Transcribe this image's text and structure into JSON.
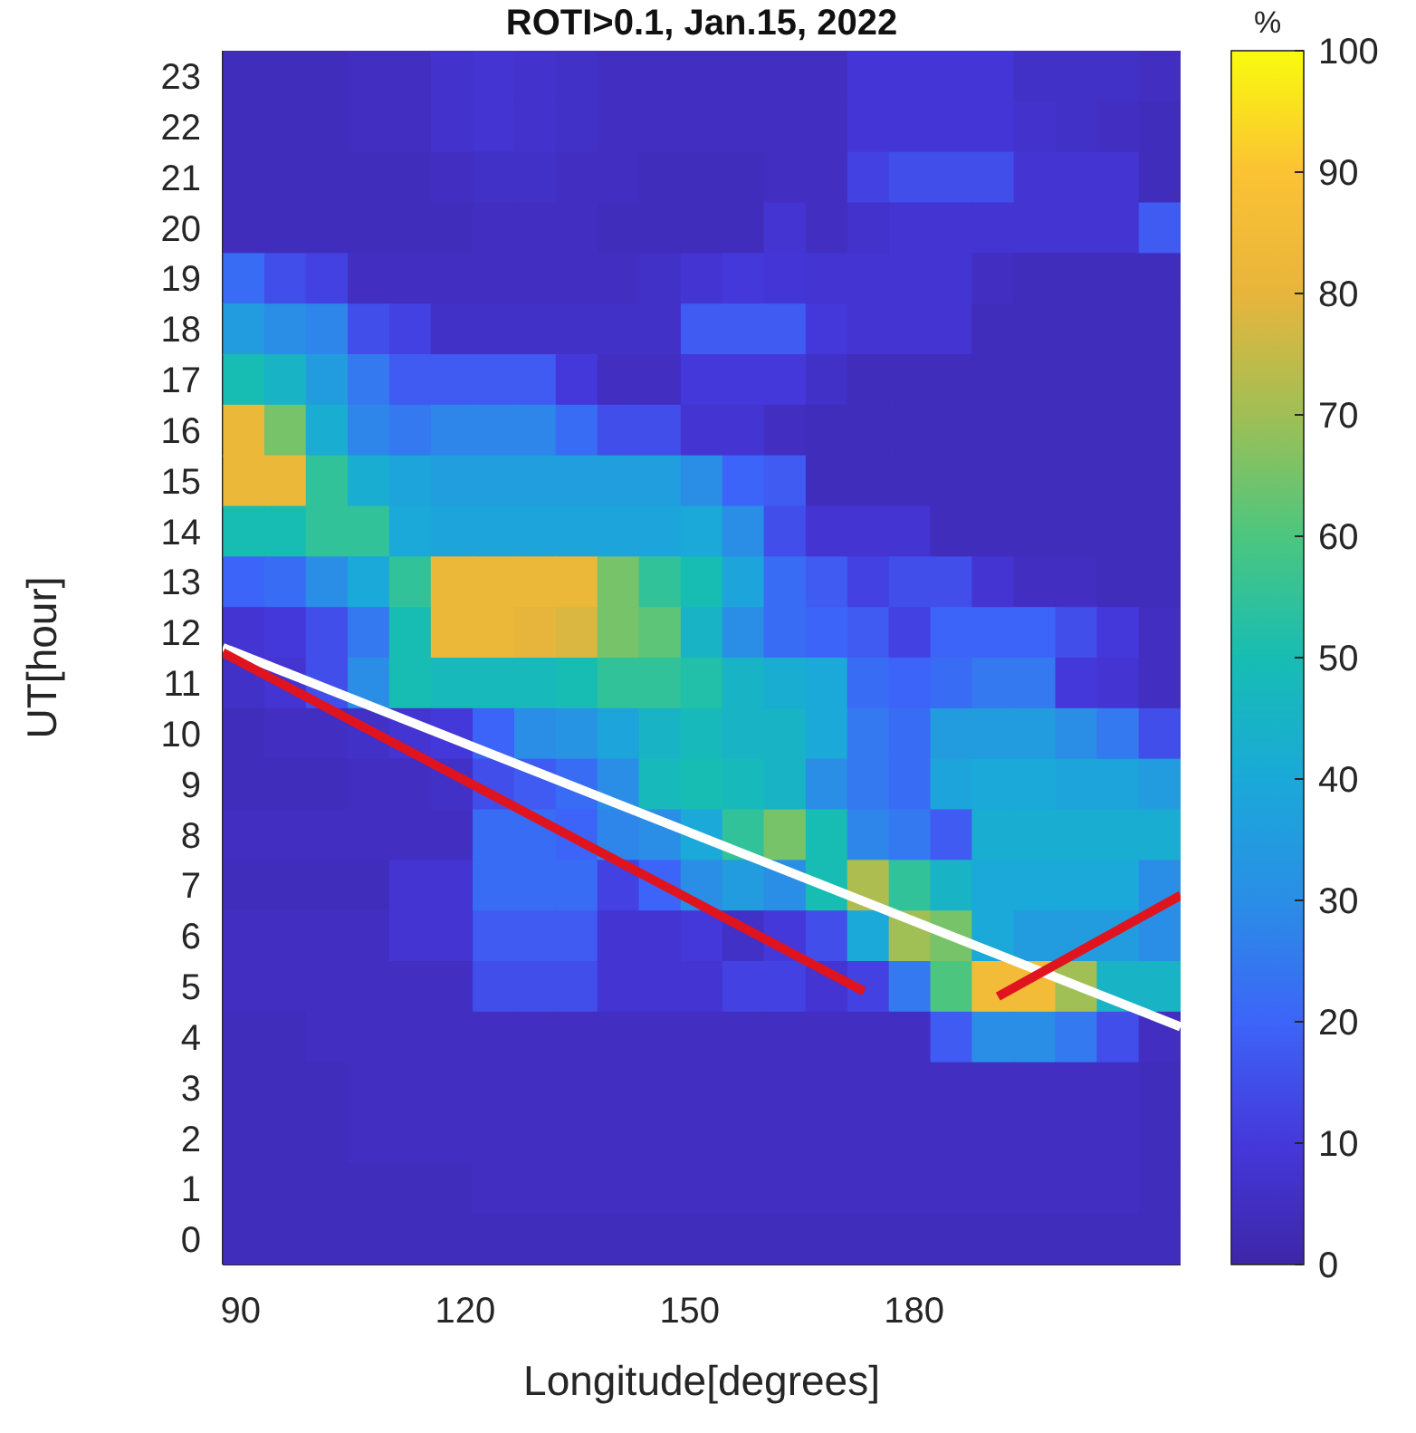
{
  "chart_data": {
    "type": "heatmap",
    "title": "ROTI>0.1, Jan.15, 2022",
    "xlabel": "Longitude[degrees]",
    "ylabel": "UT[hour]",
    "clabel": "%",
    "x": [
      90.4,
      95.9,
      101.5,
      107.1,
      112.6,
      118.2,
      123.8,
      129.3,
      134.9,
      140.4,
      146.0,
      151.6,
      157.1,
      162.7,
      168.3,
      173.8,
      179.4,
      184.9,
      190.5,
      196.1,
      201.6,
      207.2,
      212.8
    ],
    "xlim": [
      87.6,
      215.6
    ],
    "xticks": [
      90,
      120,
      150,
      180
    ],
    "ylim": [
      -0.5,
      23.5
    ],
    "yticks": [
      0,
      1,
      2,
      3,
      4,
      5,
      6,
      7,
      8,
      9,
      10,
      11,
      12,
      13,
      14,
      15,
      16,
      17,
      18,
      19,
      20,
      21,
      22,
      23
    ],
    "clim": [
      0,
      100
    ],
    "cticks": [
      0,
      10,
      20,
      30,
      40,
      50,
      60,
      70,
      80,
      90,
      100
    ],
    "cells": [
      [
        4,
        4,
        4,
        5,
        5,
        7,
        8,
        7,
        6,
        5,
        5,
        5,
        5,
        5,
        5,
        9,
        9,
        9,
        9,
        6,
        6,
        6,
        5
      ],
      [
        4,
        4,
        4,
        5,
        5,
        7,
        8,
        7,
        6,
        5,
        5,
        5,
        5,
        5,
        5,
        9,
        9,
        9,
        9,
        7,
        6,
        5,
        4
      ],
      [
        4,
        4,
        4,
        4,
        4,
        5,
        6,
        6,
        5,
        5,
        4,
        4,
        4,
        5,
        5,
        12,
        15,
        15,
        15,
        8,
        8,
        8,
        4
      ],
      [
        4,
        4,
        4,
        4,
        4,
        4,
        5,
        5,
        5,
        4,
        4,
        4,
        4,
        8,
        5,
        7,
        8,
        8,
        8,
        8,
        8,
        8,
        18
      ],
      [
        22,
        15,
        12,
        5,
        5,
        5,
        5,
        5,
        5,
        5,
        6,
        8,
        10,
        9,
        8,
        8,
        8,
        8,
        5,
        4,
        4,
        4,
        4
      ],
      [
        35,
        30,
        28,
        15,
        12,
        6,
        6,
        6,
        6,
        6,
        6,
        18,
        18,
        18,
        10,
        8,
        8,
        8,
        4,
        4,
        4,
        4,
        4
      ],
      [
        50,
        45,
        35,
        25,
        18,
        18,
        18,
        18,
        10,
        5,
        5,
        10,
        10,
        10,
        6,
        4,
        4,
        4,
        4,
        4,
        4,
        4,
        4
      ],
      [
        82,
        65,
        42,
        28,
        25,
        28,
        28,
        28,
        22,
        15,
        15,
        8,
        8,
        5,
        4,
        4,
        4,
        4,
        4,
        4,
        4,
        4,
        4
      ],
      [
        82,
        82,
        55,
        42,
        38,
        36,
        36,
        36,
        36,
        36,
        36,
        30,
        20,
        18,
        4,
        4,
        4,
        4,
        4,
        4,
        4,
        4,
        4
      ],
      [
        50,
        50,
        55,
        55,
        40,
        38,
        38,
        38,
        38,
        38,
        38,
        40,
        30,
        15,
        8,
        8,
        8,
        4,
        4,
        4,
        4,
        4,
        4
      ],
      [
        20,
        22,
        30,
        40,
        55,
        82,
        82,
        82,
        82,
        65,
        55,
        50,
        38,
        22,
        18,
        12,
        15,
        15,
        8,
        5,
        5,
        4,
        4
      ],
      [
        8,
        10,
        15,
        25,
        50,
        82,
        82,
        80,
        78,
        65,
        62,
        45,
        30,
        22,
        20,
        18,
        12,
        20,
        20,
        20,
        15,
        10,
        5
      ],
      [
        6,
        8,
        15,
        30,
        50,
        48,
        48,
        48,
        50,
        55,
        55,
        52,
        45,
        42,
        40,
        22,
        20,
        22,
        25,
        25,
        10,
        8,
        5
      ],
      [
        4,
        5,
        5,
        6,
        8,
        10,
        20,
        30,
        32,
        38,
        45,
        48,
        45,
        45,
        40,
        25,
        22,
        35,
        35,
        35,
        30,
        25,
        15
      ],
      [
        4,
        4,
        4,
        5,
        5,
        6,
        15,
        18,
        22,
        30,
        48,
        50,
        48,
        45,
        30,
        25,
        22,
        38,
        40,
        40,
        38,
        38,
        35
      ],
      [
        5,
        5,
        5,
        5,
        5,
        5,
        22,
        22,
        20,
        28,
        30,
        40,
        55,
        65,
        50,
        28,
        25,
        18,
        42,
        42,
        42,
        42,
        42
      ],
      [
        4,
        4,
        4,
        4,
        8,
        8,
        22,
        22,
        22,
        12,
        20,
        30,
        35,
        30,
        50,
        72,
        55,
        45,
        40,
        40,
        40,
        40,
        30
      ],
      [
        5,
        5,
        5,
        5,
        8,
        8,
        18,
        18,
        18,
        8,
        8,
        10,
        6,
        10,
        15,
        40,
        70,
        65,
        40,
        35,
        35,
        35,
        30
      ],
      [
        5,
        5,
        5,
        5,
        5,
        5,
        15,
        15,
        15,
        8,
        8,
        8,
        12,
        12,
        8,
        12,
        25,
        60,
        85,
        85,
        70,
        45,
        45
      ],
      [
        4,
        4,
        5,
        5,
        5,
        5,
        5,
        5,
        5,
        5,
        5,
        5,
        5,
        5,
        5,
        5,
        5,
        18,
        30,
        30,
        25,
        15,
        5
      ],
      [
        4,
        4,
        4,
        5,
        5,
        5,
        5,
        5,
        5,
        5,
        5,
        5,
        5,
        5,
        5,
        5,
        5,
        5,
        5,
        5,
        5,
        5,
        4
      ],
      [
        4,
        4,
        4,
        5,
        5,
        5,
        5,
        5,
        5,
        5,
        5,
        5,
        5,
        5,
        5,
        5,
        5,
        5,
        5,
        5,
        5,
        5,
        4
      ],
      [
        4,
        4,
        4,
        4,
        4,
        4,
        5,
        5,
        5,
        5,
        5,
        5,
        5,
        5,
        5,
        5,
        5,
        5,
        5,
        5,
        5,
        5,
        4
      ],
      [
        4,
        4,
        4,
        4,
        4,
        4,
        4,
        4,
        4,
        4,
        4,
        4,
        4,
        4,
        4,
        4,
        4,
        4,
        4,
        4,
        4,
        4,
        4
      ]
    ],
    "series": [
      {
        "type": "line",
        "color": "#ffffff",
        "x": [
          87.6,
          215.6
        ],
        "values": [
          11.7,
          4.2
        ]
      },
      {
        "type": "line",
        "color": "#e0141e",
        "x": [
          87.6,
          173.3
        ],
        "values": [
          11.6,
          4.9
        ]
      },
      {
        "type": "line",
        "color": "#e0141e",
        "x": [
          191.2,
          215.6
        ],
        "values": [
          4.8,
          6.8
        ]
      }
    ]
  }
}
